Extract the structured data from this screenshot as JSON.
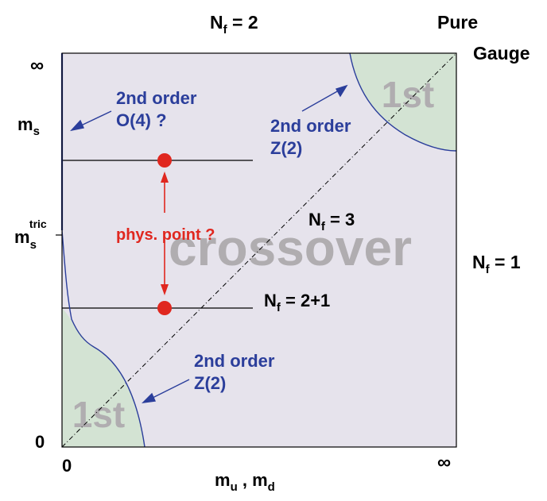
{
  "diagram": {
    "labels": {
      "nf2": {
        "main": "N",
        "sub": "f",
        "rest": " = 2"
      },
      "pure": "Pure",
      "gauge": "Gauge",
      "inf_top": "∞",
      "inf_bottom": "∞",
      "zero_left": "0",
      "zero_bottom": "0",
      "ms": {
        "main": "m",
        "sub": "s"
      },
      "ms_tric": {
        "main": "m",
        "sub": "s",
        "sup": "tric"
      },
      "x_axis": {
        "m1": "m",
        "s1": "u",
        "mid": " , ",
        "m2": "m",
        "s2": "d"
      },
      "nf1": {
        "main": "N",
        "sub": "f",
        "rest": " = 1"
      },
      "nf3": {
        "main": "N",
        "sub": "f",
        "rest": " = 3"
      },
      "nf21": {
        "main": "N",
        "sub": "f",
        "rest": " = 2+1"
      },
      "second_order_o4_line1": "2nd order",
      "second_order_o4_line2": "O(4) ?",
      "second_order_z2_top_line1": "2nd order",
      "second_order_z2_top_line2": "Z(2)",
      "second_order_z2_bottom_line1": "2nd order",
      "second_order_z2_bottom_line2": "Z(2)",
      "phys_point": "phys. point ?",
      "crossover": "crossover",
      "first_top": "1st",
      "first_bottom": "1st"
    },
    "colors": {
      "background_region": "#e6e3ec",
      "first_order_region": "#d3e3d3",
      "blue": "#2b3e9b",
      "red": "#e0271f",
      "watermark_gray": "#b0adb0",
      "black": "#000000"
    }
  }
}
